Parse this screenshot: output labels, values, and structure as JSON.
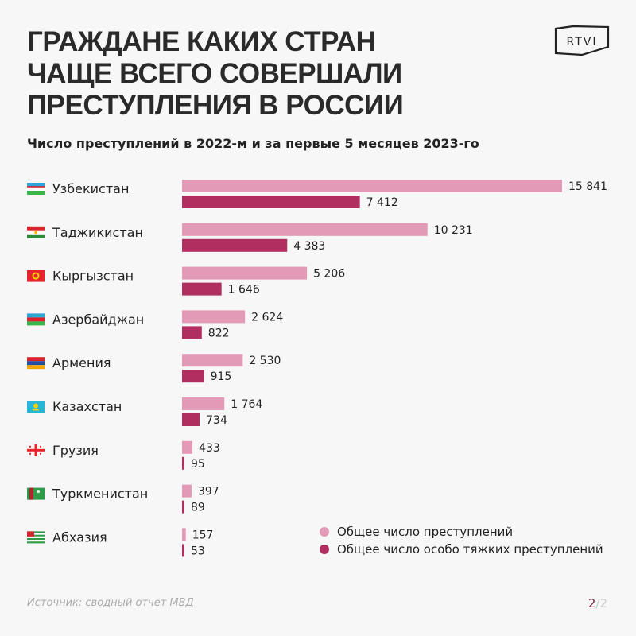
{
  "title_lines": [
    "ГРАЖДАНЕ КАКИХ СТРАН",
    "ЧАЩЕ ВСЕГО СОВЕРШАЛИ",
    "ПРЕСТУПЛЕНИЯ В РОССИИ"
  ],
  "logo": "RTVI",
  "source": "Источник: сводный отчет МВД",
  "pager": {
    "current": "2",
    "separator": "/",
    "total": "2"
  },
  "chart_data": {
    "type": "bar",
    "orientation": "horizontal",
    "title": "Число преступлений в 2022-м и за первые 5 месяцев 2023-го",
    "categories": [
      "Узбекистан",
      "Таджикистан",
      "Кыргызстан",
      "Азербайджан",
      "Армения",
      "Казахстан",
      "Грузия",
      "Туркменистан",
      "Абхазия"
    ],
    "flags": [
      "uz",
      "tj",
      "kg",
      "az",
      "am",
      "kz",
      "ge",
      "tm",
      "abkhazia"
    ],
    "series": [
      {
        "name": "Общее число преступлений",
        "color": "#e39ab6",
        "values": [
          15841,
          10231,
          5206,
          2624,
          2530,
          1764,
          433,
          397,
          157
        ],
        "labels": [
          "15 841",
          "10 231",
          "5 206",
          "2 624",
          "2 530",
          "1 764",
          "433",
          "397",
          "157"
        ]
      },
      {
        "name": "Общее число особо тяжких преступлений",
        "color": "#b02f60",
        "values": [
          7412,
          4383,
          1646,
          822,
          915,
          734,
          95,
          89,
          53
        ],
        "labels": [
          "7 412",
          "4 383",
          "1 646",
          "822",
          "915",
          "734",
          "95",
          "89",
          "53"
        ]
      }
    ],
    "legend": "bottom-right",
    "grid": false
  }
}
